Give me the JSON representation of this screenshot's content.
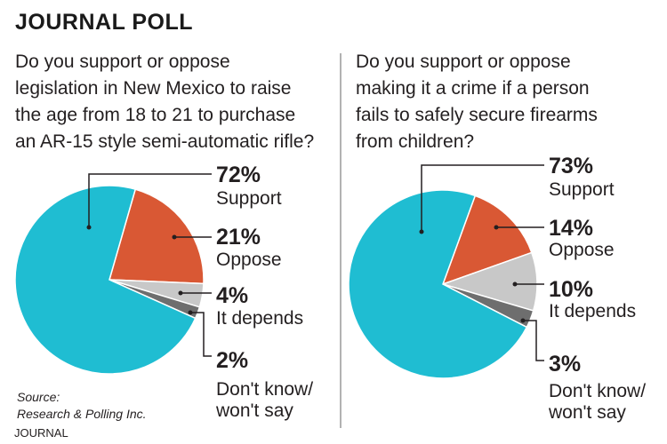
{
  "title": "JOURNAL POLL",
  "source_line1": "Source:",
  "source_line2": "Research & Polling Inc.",
  "brand": "JOURNAL",
  "chart_data": [
    {
      "type": "pie",
      "question_lines": [
        "Do you support or oppose",
        "legislation in New Mexico to raise",
        "the age from 18 to 21 to purchase",
        "an AR-15 style semi-automatic rifle?"
      ],
      "slices": [
        {
          "label": "Support",
          "value": 72,
          "value_label": "72%",
          "color": "#1fbdd2"
        },
        {
          "label": "Oppose",
          "value": 21,
          "value_label": "21%",
          "color": "#d95834"
        },
        {
          "label": "It depends",
          "value": 4,
          "value_label": "4%",
          "color": "#c8c8c8"
        },
        {
          "label_lines": [
            "Don't know/",
            "won't say"
          ],
          "value": 2,
          "value_label": "2%",
          "color": "#6e6e6e"
        }
      ]
    },
    {
      "type": "pie",
      "question_lines": [
        "Do you support or oppose",
        "making it a crime if a person",
        "fails to safely secure firearms",
        "from children?"
      ],
      "slices": [
        {
          "label": "Support",
          "value": 73,
          "value_label": "73%",
          "color": "#1fbdd2"
        },
        {
          "label": "Oppose",
          "value": 14,
          "value_label": "14%",
          "color": "#d95834"
        },
        {
          "label": "It depends",
          "value": 10,
          "value_label": "10%",
          "color": "#c8c8c8"
        },
        {
          "label_lines": [
            "Don't know/",
            "won't say"
          ],
          "value": 3,
          "value_label": "3%",
          "color": "#6e6e6e"
        }
      ]
    }
  ]
}
